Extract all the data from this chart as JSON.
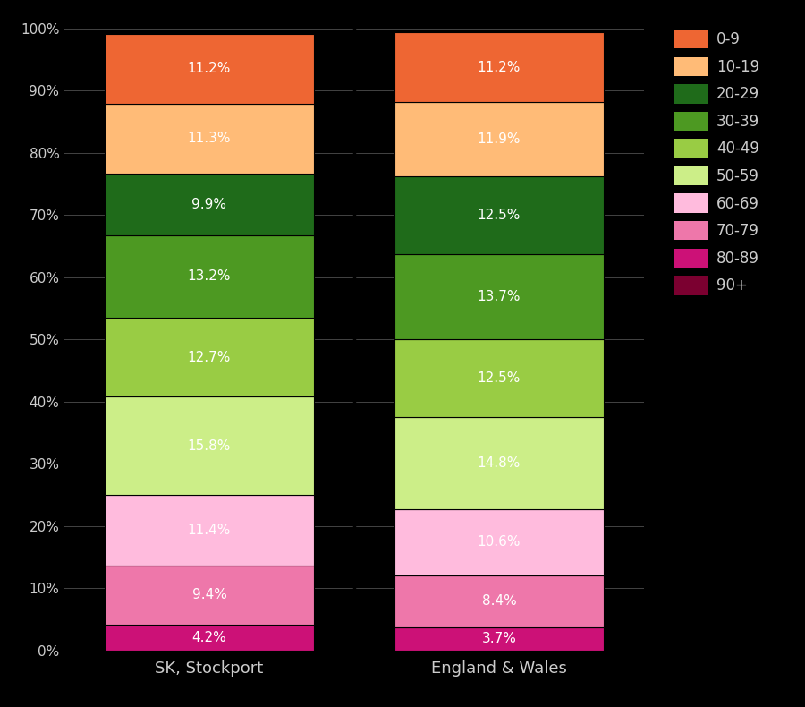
{
  "categories": [
    "SK, Stockport",
    "England & Wales"
  ],
  "segments_bottom_to_top": [
    "80-89",
    "70-79",
    "60-69",
    "50-59",
    "40-49",
    "30-39",
    "20-29",
    "10-19",
    "0-9"
  ],
  "stockport": [
    4.2,
    9.4,
    11.4,
    15.8,
    12.7,
    13.2,
    9.9,
    11.3,
    11.2
  ],
  "england_wales": [
    3.7,
    8.4,
    10.6,
    14.8,
    12.5,
    13.7,
    12.5,
    11.9,
    11.2
  ],
  "colors_bottom_to_top": [
    "#cc1177",
    "#ee77aa",
    "#ffbbdd",
    "#ccee88",
    "#99cc44",
    "#4d9922",
    "#1f6b1a",
    "#ffbb77",
    "#ee6633"
  ],
  "legend_labels": [
    "0-9",
    "10-19",
    "20-29",
    "30-39",
    "40-49",
    "50-59",
    "60-69",
    "70-79",
    "80-89",
    "90+"
  ],
  "legend_colors": [
    "#ee6633",
    "#ffbb77",
    "#1f6b1a",
    "#4d9922",
    "#99cc44",
    "#ccee88",
    "#ffbbdd",
    "#ee77aa",
    "#cc1177",
    "#7b0030"
  ],
  "background_color": "#000000",
  "text_color": "#cccccc",
  "bar_edge_color": "#000000",
  "divider_color": "#000000",
  "grid_color": "#444444",
  "label_color_dark": "#555555",
  "label_color_light": "#ffffff",
  "yticks": [
    0,
    10,
    20,
    30,
    40,
    50,
    60,
    70,
    80,
    90,
    100
  ],
  "ytick_labels": [
    "0%",
    "10%",
    "20%",
    "30%",
    "40%",
    "50%",
    "60%",
    "70%",
    "80%",
    "90%",
    "100%"
  ]
}
